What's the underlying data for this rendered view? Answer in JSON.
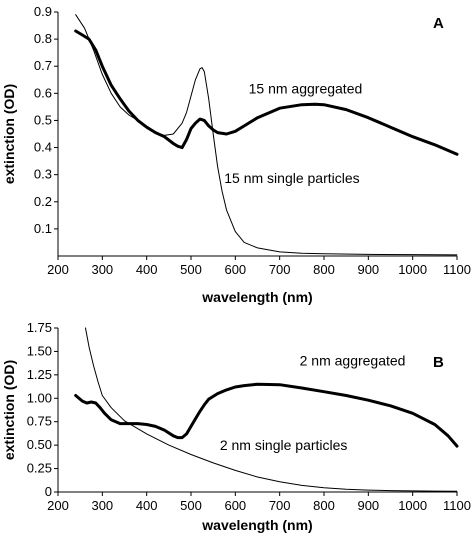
{
  "chart_data": [
    {
      "type": "line",
      "panel_label": "A",
      "xlabel": "wavelength (nm)",
      "ylabel": "extinction (OD)",
      "xlim": [
        200,
        1100
      ],
      "ylim": [
        0,
        0.9
      ],
      "xticks": [
        "200",
        "300",
        "400",
        "500",
        "600",
        "700",
        "800",
        "900",
        "1000",
        "1100"
      ],
      "yticks": [
        "0.1",
        "0.2",
        "0.3",
        "0.4",
        "0.5",
        "0.6",
        "0.7",
        "0.8",
        "0.9"
      ],
      "grid": false,
      "legend": "none",
      "series": [
        {
          "name": "15 nm aggregated",
          "style": "thick",
          "x": [
            240,
            255,
            270,
            285,
            300,
            320,
            340,
            360,
            380,
            400,
            420,
            440,
            460,
            470,
            480,
            490,
            500,
            510,
            520,
            530,
            540,
            550,
            560,
            580,
            600,
            620,
            650,
            700,
            750,
            780,
            800,
            850,
            900,
            950,
            1000,
            1050,
            1100
          ],
          "y": [
            0.83,
            0.815,
            0.8,
            0.76,
            0.7,
            0.63,
            0.58,
            0.535,
            0.5,
            0.475,
            0.455,
            0.44,
            0.415,
            0.405,
            0.4,
            0.43,
            0.47,
            0.49,
            0.505,
            0.5,
            0.48,
            0.465,
            0.455,
            0.45,
            0.46,
            0.48,
            0.51,
            0.545,
            0.558,
            0.56,
            0.558,
            0.54,
            0.51,
            0.475,
            0.44,
            0.41,
            0.375
          ]
        },
        {
          "name": "15 nm single particles",
          "style": "thin",
          "x": [
            240,
            260,
            280,
            300,
            320,
            340,
            360,
            380,
            400,
            420,
            440,
            460,
            480,
            490,
            500,
            510,
            520,
            525,
            530,
            540,
            550,
            560,
            570,
            580,
            600,
            620,
            650,
            700,
            750,
            800,
            900,
            1000,
            1100
          ],
          "y": [
            0.89,
            0.84,
            0.76,
            0.67,
            0.6,
            0.55,
            0.52,
            0.5,
            0.475,
            0.455,
            0.445,
            0.45,
            0.49,
            0.53,
            0.59,
            0.65,
            0.69,
            0.695,
            0.68,
            0.58,
            0.45,
            0.33,
            0.24,
            0.17,
            0.09,
            0.05,
            0.03,
            0.015,
            0.01,
            0.008,
            0.006,
            0.005,
            0.004
          ]
        }
      ],
      "annotations": [
        {
          "text": "15 nm aggregated",
          "x": 630,
          "y": 0.6
        },
        {
          "text": "15 nm single particles",
          "x": 575,
          "y": 0.27
        }
      ]
    },
    {
      "type": "line",
      "panel_label": "B",
      "xlabel": "wavelength (nm)",
      "ylabel": "extinction (OD)",
      "xlim": [
        200,
        1100
      ],
      "ylim": [
        0,
        1.75
      ],
      "xticks": [
        "200",
        "300",
        "400",
        "500",
        "600",
        "700",
        "800",
        "900",
        "1000",
        "1100"
      ],
      "yticks": [
        "0",
        "0.25",
        "0.50",
        "0.75",
        "1.00",
        "1.25",
        "1.50",
        "1.75"
      ],
      "grid": false,
      "legend": "none",
      "series": [
        {
          "name": "2 nm aggregated",
          "style": "thick",
          "x": [
            240,
            255,
            265,
            275,
            285,
            295,
            305,
            320,
            340,
            360,
            380,
            400,
            420,
            440,
            460,
            470,
            480,
            490,
            500,
            510,
            520,
            530,
            540,
            550,
            560,
            580,
            600,
            620,
            650,
            700,
            750,
            800,
            850,
            900,
            950,
            1000,
            1050,
            1080,
            1100
          ],
          "y": [
            1.03,
            0.97,
            0.95,
            0.96,
            0.95,
            0.9,
            0.84,
            0.77,
            0.73,
            0.73,
            0.73,
            0.72,
            0.7,
            0.66,
            0.6,
            0.58,
            0.58,
            0.62,
            0.7,
            0.78,
            0.86,
            0.93,
            0.99,
            1.02,
            1.05,
            1.09,
            1.12,
            1.135,
            1.15,
            1.145,
            1.11,
            1.07,
            1.03,
            0.98,
            0.92,
            0.84,
            0.72,
            0.6,
            0.49
          ]
        },
        {
          "name": "2 nm single particles",
          "style": "thin",
          "x": [
            262,
            270,
            280,
            290,
            300,
            320,
            350,
            400,
            450,
            500,
            550,
            600,
            650,
            700,
            750,
            800,
            850,
            900,
            950,
            1000,
            1050,
            1100
          ],
          "y": [
            1.75,
            1.55,
            1.35,
            1.18,
            1.03,
            0.9,
            0.76,
            0.62,
            0.5,
            0.4,
            0.31,
            0.23,
            0.16,
            0.11,
            0.07,
            0.045,
            0.03,
            0.02,
            0.015,
            0.012,
            0.01,
            0.008
          ]
        }
      ],
      "annotations": [
        {
          "text": "2 nm aggregated",
          "x": 745,
          "y": 1.35
        },
        {
          "text": "2 nm single particles",
          "x": 565,
          "y": 0.45
        }
      ]
    }
  ]
}
